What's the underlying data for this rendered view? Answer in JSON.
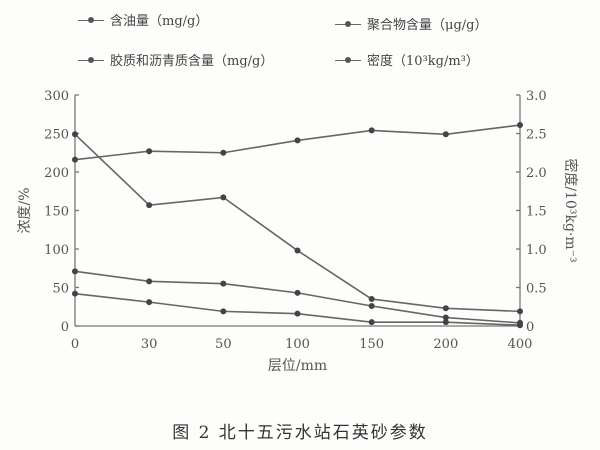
{
  "chart_data": {
    "type": "line",
    "caption": "图 2   北十五污水站石英砂参数",
    "xlabel": "层位/mm",
    "ylabel": "浓度/%",
    "y2label": "密度/10³kg·m⁻³",
    "categories": [
      "0",
      "30",
      "50",
      "100",
      "150",
      "200",
      "400"
    ],
    "ylim": [
      0,
      300
    ],
    "yticks": [
      0,
      50,
      100,
      150,
      200,
      250,
      300
    ],
    "y2lim": [
      0,
      3.0
    ],
    "y2ticks": [
      "0",
      "0.5",
      "1.0",
      "1.5",
      "2.0",
      "2.5",
      "3.0"
    ],
    "grid": false,
    "legend_position": "top",
    "series": [
      {
        "name": "含油量（mg/g）",
        "axis": "left",
        "values": [
          249,
          157,
          167,
          98,
          35,
          23,
          19
        ]
      },
      {
        "name": "聚合物含量（μg/g）",
        "axis": "left",
        "values": [
          71,
          58,
          55,
          43,
          26,
          11,
          4
        ]
      },
      {
        "name": "胶质和沥青质含量（mg/g）",
        "axis": "left",
        "values": [
          42,
          31,
          19,
          16,
          5,
          5,
          1
        ]
      },
      {
        "name": "密度（10³kg/m³）",
        "axis": "right",
        "values": [
          2.16,
          2.27,
          2.25,
          2.41,
          2.54,
          2.49,
          2.61
        ]
      }
    ],
    "line_color": "#666666"
  }
}
